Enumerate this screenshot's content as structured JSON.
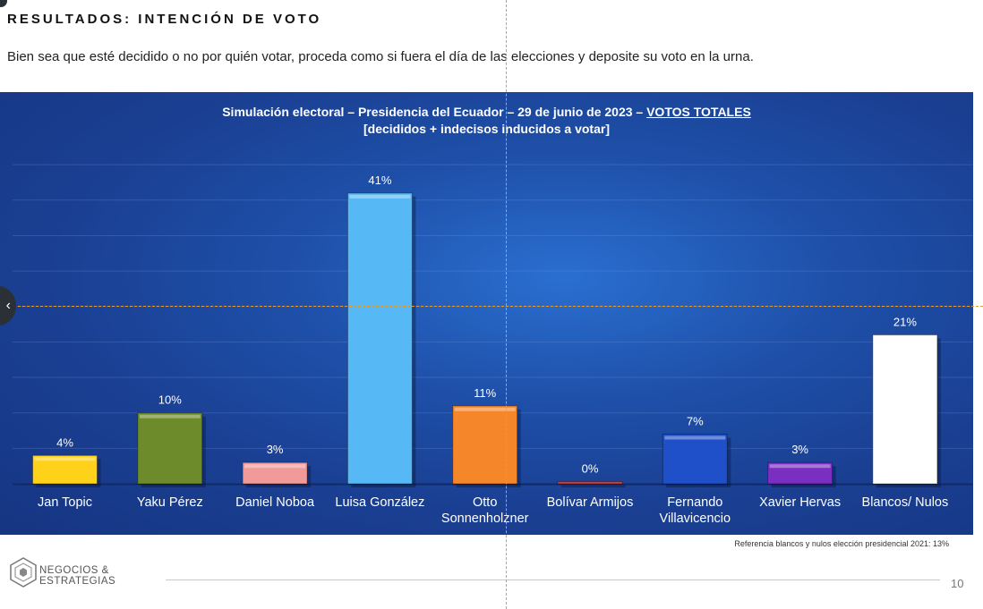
{
  "header": {
    "title": "RESULTADOS: INTENCIÓN DE VOTO",
    "subtitle": "Bien sea que esté decidido o no por quién votar, proceda como si fuera el día de las elecciones y deposite su voto en la urna."
  },
  "chart_data": {
    "type": "bar",
    "title_line1": "Simulación electoral – Presidencia del Ecuador – 29 de junio de 2023 – ",
    "title_underlined": "VOTOS TOTALES",
    "title_line2": "[decididos + indecisos inducidos a votar]",
    "categories": [
      [
        "Jan Topic"
      ],
      [
        "Yaku Pérez"
      ],
      [
        "Daniel Noboa"
      ],
      [
        "Luisa González"
      ],
      [
        "Otto",
        "Sonnenholzner"
      ],
      [
        "Bolívar Armijos"
      ],
      [
        "Fernando",
        "Villavicencio"
      ],
      [
        "Xavier Hervas"
      ],
      [
        "Blancos/ Nulos"
      ]
    ],
    "values": [
      4,
      10,
      3,
      41,
      11,
      0,
      7,
      3,
      21
    ],
    "value_labels": [
      "4%",
      "10%",
      "3%",
      "41%",
      "11%",
      "0%",
      "7%",
      "3%",
      "21%"
    ],
    "colors": [
      "#ffd21a",
      "#6d8b2a",
      "#f29a9a",
      "#56b8f5",
      "#f5862a",
      "#d04040",
      "#1f4fc9",
      "#7a2fc2",
      "#ffffff"
    ],
    "ylim": [
      0,
      45
    ],
    "grid": true,
    "legend": "none"
  },
  "footer": {
    "reference": "Referencia blancos y nulos elección presidencial 2021: 13%",
    "logo_line1": "NEGOCIOS &",
    "logo_line2": "ESTRATEGIAS",
    "page_number": "10"
  }
}
